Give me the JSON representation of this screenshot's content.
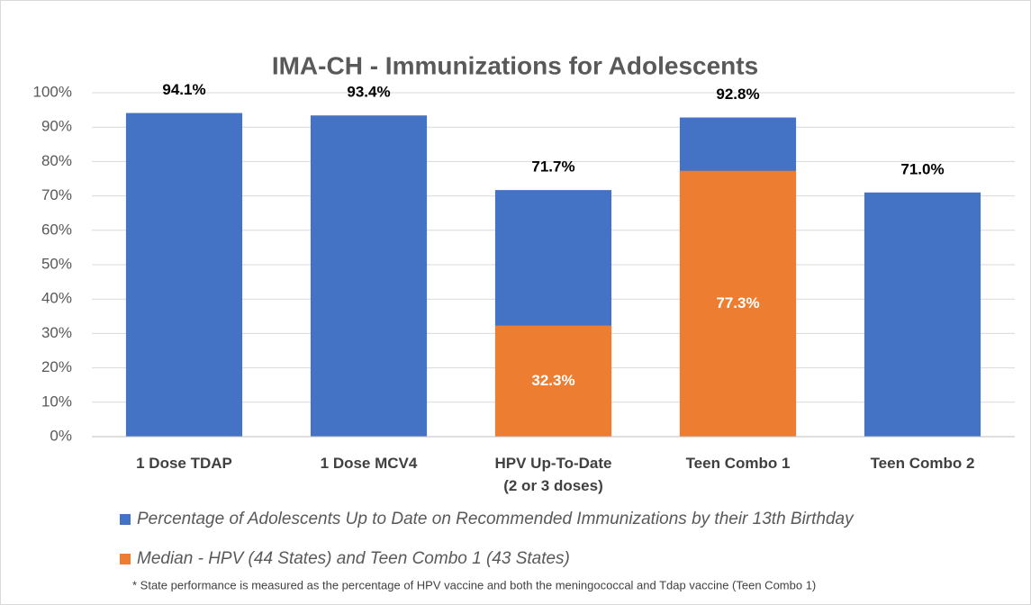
{
  "chart_data": {
    "type": "bar",
    "title": "IMA-CH - Immunizations for Adolescents",
    "categories": [
      "1 Dose TDAP",
      "1 Dose MCV4",
      "HPV Up-To-Date\n(2 or 3 doses)",
      "Teen Combo 1",
      "Teen Combo 2"
    ],
    "series": [
      {
        "name": "Percentage of Adolescents Up to Date on Recommended Immunizations by their 13th Birthday",
        "color": "#4472c4",
        "values": [
          94.1,
          93.4,
          71.7,
          92.8,
          71.0
        ],
        "value_labels": [
          "94.1%",
          "93.4%",
          "71.7%",
          "92.8%",
          "71.0%"
        ]
      },
      {
        "name": "Median - HPV (44 States) and Teen Combo 1 (43 States)",
        "color": "#ed7d31",
        "values": [
          null,
          null,
          32.3,
          77.3,
          null
        ],
        "value_labels": [
          null,
          null,
          "32.3%",
          "77.3%",
          null
        ]
      }
    ],
    "ylim": [
      0,
      100
    ],
    "yticks": [
      {
        "value": 0,
        "label": "0%"
      },
      {
        "value": 10,
        "label": "10%"
      },
      {
        "value": 20,
        "label": "20%"
      },
      {
        "value": 30,
        "label": "30%"
      },
      {
        "value": 40,
        "label": "40%"
      },
      {
        "value": 50,
        "label": "50%"
      },
      {
        "value": 60,
        "label": "60%"
      },
      {
        "value": 70,
        "label": "70%"
      },
      {
        "value": 80,
        "label": "80%"
      },
      {
        "value": 90,
        "label": "90%"
      },
      {
        "value": 100,
        "label": "100%"
      }
    ],
    "grid": true,
    "footnote": "* State performance is measured as the percentage of HPV vaccine and both the meningococcal and Tdap vaccine (Teen Combo 1)"
  }
}
